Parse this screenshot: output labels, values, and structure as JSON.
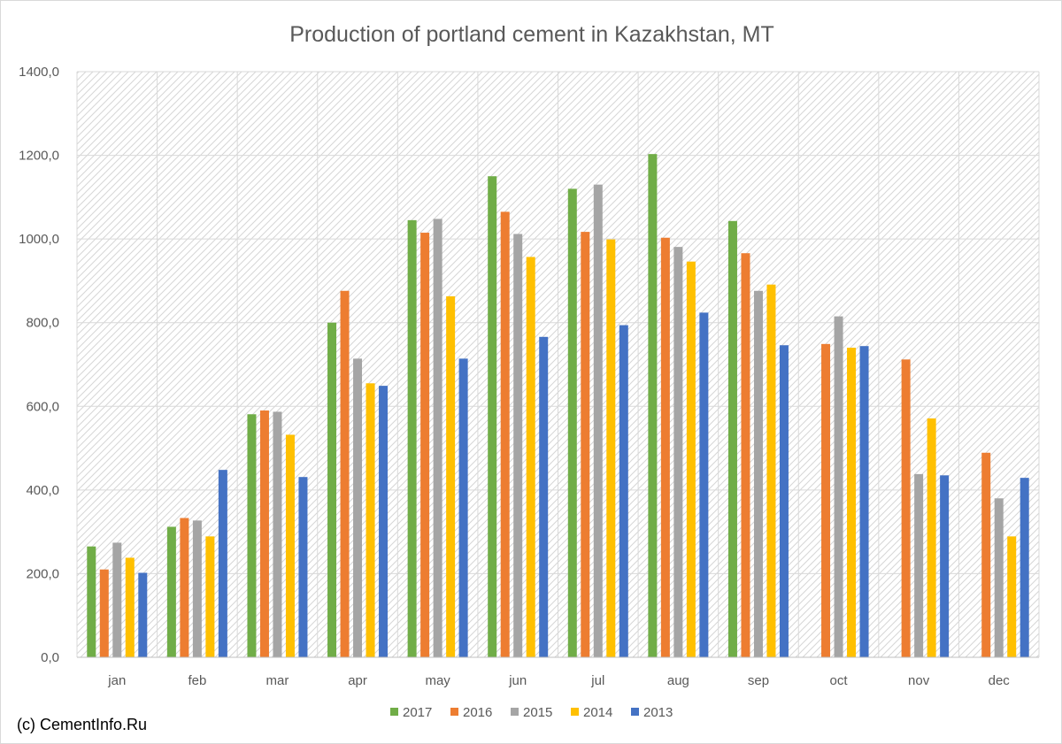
{
  "chart_data": {
    "type": "bar",
    "title": "Production of portland cement in Kazakhstan, MT",
    "xlabel": "",
    "ylabel": "",
    "categories": [
      "jan",
      "feb",
      "mar",
      "apr",
      "may",
      "jun",
      "jul",
      "aug",
      "sep",
      "oct",
      "nov",
      "dec"
    ],
    "series": [
      {
        "name": "2017",
        "color": "#70ad47",
        "values": [
          265,
          312,
          581,
          800,
          1045,
          1150,
          1120,
          1203,
          1043,
          null,
          null,
          null
        ]
      },
      {
        "name": "2016",
        "color": "#ed7d31",
        "values": [
          210,
          333,
          590,
          876,
          1015,
          1065,
          1017,
          1003,
          966,
          749,
          712,
          489
        ]
      },
      {
        "name": "2015",
        "color": "#a5a5a5",
        "values": [
          274,
          327,
          587,
          714,
          1048,
          1012,
          1130,
          981,
          876,
          815,
          438,
          380
        ]
      },
      {
        "name": "2014",
        "color": "#ffc000",
        "values": [
          238,
          289,
          532,
          655,
          863,
          957,
          999,
          946,
          891,
          740,
          571,
          289
        ]
      },
      {
        "name": "2013",
        "color": "#4472c4",
        "values": [
          202,
          448,
          431,
          649,
          714,
          766,
          794,
          824,
          746,
          744,
          435,
          429
        ]
      }
    ],
    "y_ticks": [
      "0,0",
      "200,0",
      "400,0",
      "600,0",
      "800,0",
      "1000,0",
      "1200,0",
      "1400,0"
    ],
    "ylim": [
      0,
      1400
    ],
    "grid": true,
    "legend_position": "bottom"
  },
  "footer": {
    "copyright": "(c) CementInfo.Ru"
  }
}
